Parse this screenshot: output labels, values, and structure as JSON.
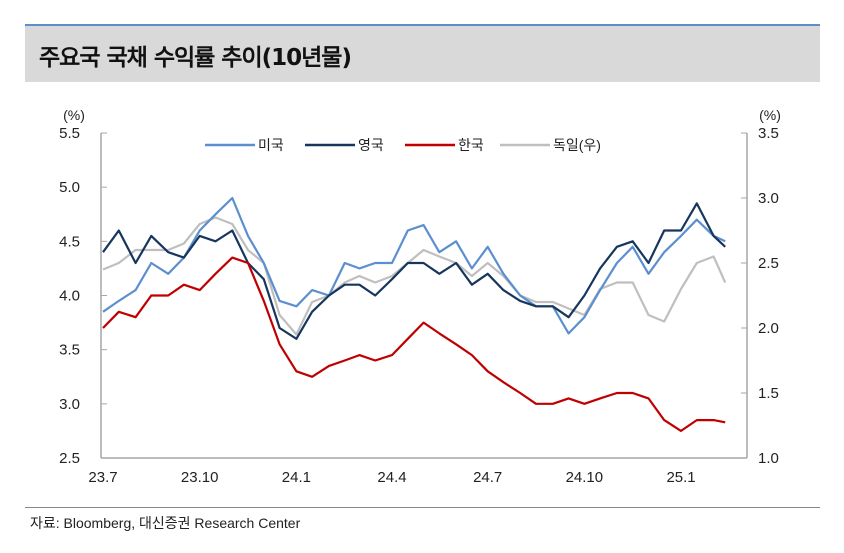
{
  "title": "주요국 국채 수익률 추이(10년물)",
  "source": "자료: Bloomberg, 대신증권 Research Center",
  "chart_data": {
    "type": "line",
    "title": "주요국 국채 수익률 추이(10년물)",
    "left_axis": {
      "unit": "(%)",
      "ylim": [
        2.5,
        5.5
      ],
      "ticks": [
        "2.5",
        "3.0",
        "3.5",
        "4.0",
        "4.5",
        "5.0",
        "5.5"
      ]
    },
    "right_axis": {
      "unit": "(%)",
      "ylim": [
        1.0,
        3.5
      ],
      "ticks": [
        "1.0",
        "1.5",
        "2.0",
        "2.5",
        "3.0",
        "3.5"
      ]
    },
    "x_ticks": [
      {
        "label": "23.7",
        "date": "2023-07-01"
      },
      {
        "label": "23.10",
        "date": "2023-10-01"
      },
      {
        "label": "24.1",
        "date": "2024-01-01"
      },
      {
        "label": "24.4",
        "date": "2024-04-01"
      },
      {
        "label": "24.7",
        "date": "2024-07-01"
      },
      {
        "label": "24.10",
        "date": "2024-10-01"
      },
      {
        "label": "25.1",
        "date": "2025-01-01"
      }
    ],
    "grid": false,
    "legend_placement": "top-center",
    "x": [
      "2023-07-01",
      "2023-07-16",
      "2023-08-01",
      "2023-08-16",
      "2023-09-01",
      "2023-09-16",
      "2023-10-01",
      "2023-10-16",
      "2023-11-01",
      "2023-11-16",
      "2023-12-01",
      "2023-12-16",
      "2024-01-01",
      "2024-01-16",
      "2024-02-01",
      "2024-02-16",
      "2024-03-01",
      "2024-03-16",
      "2024-04-01",
      "2024-04-16",
      "2024-05-01",
      "2024-05-16",
      "2024-06-01",
      "2024-06-16",
      "2024-07-01",
      "2024-07-16",
      "2024-08-01",
      "2024-08-16",
      "2024-09-01",
      "2024-09-16",
      "2024-10-01",
      "2024-10-16",
      "2024-11-01",
      "2024-11-16",
      "2024-12-01",
      "2024-12-16",
      "2025-01-01",
      "2025-01-16",
      "2025-02-01",
      "2025-02-12"
    ],
    "series": [
      {
        "name": "미국",
        "axis": "left",
        "color": "#5b8fd0",
        "values": [
          3.85,
          3.95,
          4.05,
          4.3,
          4.2,
          4.35,
          4.6,
          4.75,
          4.9,
          4.55,
          4.3,
          3.95,
          3.9,
          4.05,
          4.0,
          4.3,
          4.25,
          4.3,
          4.3,
          4.6,
          4.65,
          4.4,
          4.5,
          4.25,
          4.45,
          4.2,
          4.0,
          3.9,
          3.9,
          3.65,
          3.8,
          4.05,
          4.3,
          4.45,
          4.2,
          4.4,
          4.55,
          4.7,
          4.55,
          4.5
        ]
      },
      {
        "name": "영국",
        "axis": "left",
        "color": "#17365d",
        "values": [
          4.4,
          4.6,
          4.3,
          4.55,
          4.4,
          4.35,
          4.55,
          4.5,
          4.6,
          4.3,
          4.15,
          3.7,
          3.6,
          3.85,
          4.0,
          4.1,
          4.1,
          4.0,
          4.15,
          4.3,
          4.3,
          4.2,
          4.3,
          4.1,
          4.2,
          4.05,
          3.95,
          3.9,
          3.9,
          3.8,
          4.0,
          4.25,
          4.45,
          4.5,
          4.3,
          4.6,
          4.6,
          4.85,
          4.55,
          4.45
        ]
      },
      {
        "name": "한국",
        "axis": "left",
        "color": "#c00000",
        "values": [
          3.7,
          3.85,
          3.8,
          4.0,
          4.0,
          4.1,
          4.05,
          4.2,
          4.35,
          4.3,
          3.95,
          3.55,
          3.3,
          3.25,
          3.35,
          3.4,
          3.45,
          3.4,
          3.45,
          3.6,
          3.75,
          3.65,
          3.55,
          3.45,
          3.3,
          3.2,
          3.1,
          3.0,
          3.0,
          3.05,
          3.0,
          3.05,
          3.1,
          3.1,
          3.05,
          2.85,
          2.75,
          2.85,
          2.85,
          2.83
        ]
      },
      {
        "name": "독일(우)",
        "axis": "right",
        "color": "#bfbfbf",
        "values": [
          2.45,
          2.5,
          2.6,
          2.6,
          2.6,
          2.65,
          2.8,
          2.85,
          2.8,
          2.6,
          2.5,
          2.1,
          1.95,
          2.2,
          2.25,
          2.35,
          2.4,
          2.35,
          2.4,
          2.5,
          2.6,
          2.55,
          2.5,
          2.4,
          2.5,
          2.4,
          2.25,
          2.2,
          2.2,
          2.15,
          2.1,
          2.3,
          2.35,
          2.35,
          2.1,
          2.05,
          2.3,
          2.5,
          2.55,
          2.35
        ]
      }
    ]
  }
}
